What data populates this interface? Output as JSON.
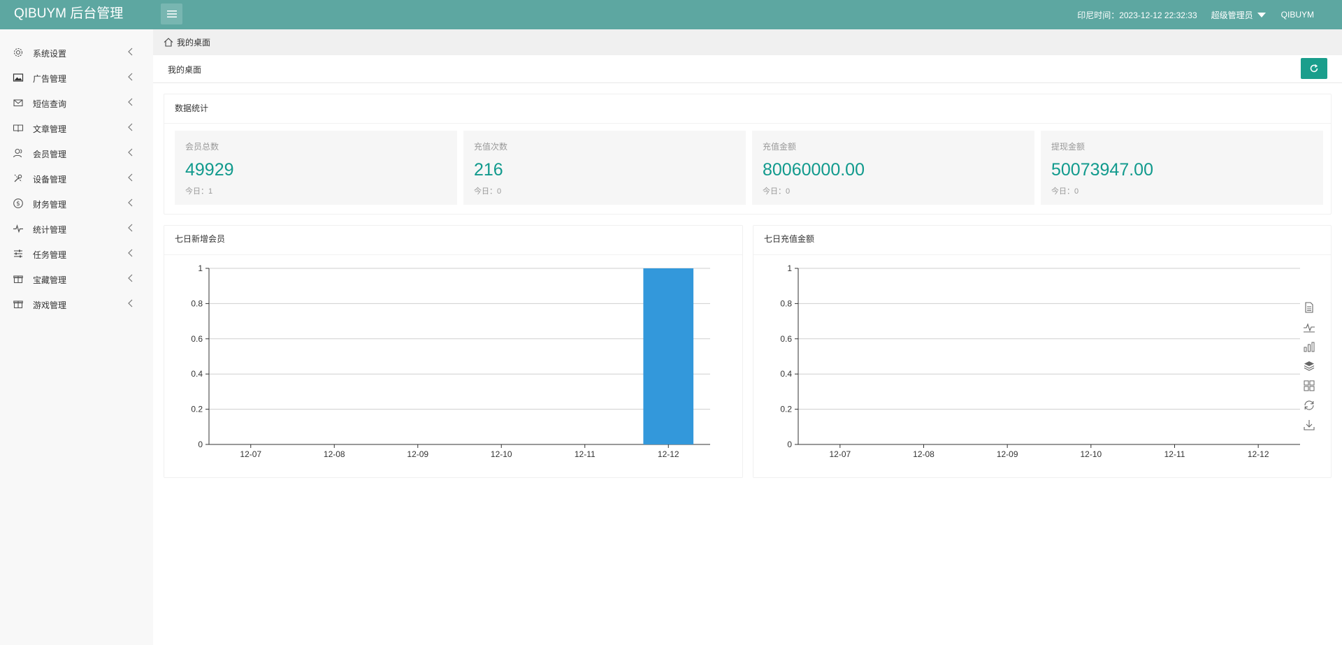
{
  "header": {
    "logo": "QIBUYM 后台管理",
    "login_time": "印尼时间：2023-12-12 22:32:33",
    "role": "超级管理员",
    "username": "QIBUYM"
  },
  "sidebar": {
    "items": [
      {
        "label": "系统设置",
        "icon": "gear-icon"
      },
      {
        "label": "广告管理",
        "icon": "picture-icon"
      },
      {
        "label": "短信查询",
        "icon": "mail-icon"
      },
      {
        "label": "文章管理",
        "icon": "book-icon"
      },
      {
        "label": "会员管理",
        "icon": "users-icon"
      },
      {
        "label": "设备管理",
        "icon": "tools-icon"
      },
      {
        "label": "财务管理",
        "icon": "dollar-icon"
      },
      {
        "label": "统计管理",
        "icon": "pulse-icon"
      },
      {
        "label": "任务管理",
        "icon": "sliders-icon"
      },
      {
        "label": "宝藏管理",
        "icon": "gift-icon"
      },
      {
        "label": "游戏管理",
        "icon": "gift-icon"
      }
    ]
  },
  "breadcrumb": {
    "label": "我的桌面"
  },
  "page": {
    "title": "我的桌面"
  },
  "stats": {
    "title": "数据统计",
    "cards": [
      {
        "label": "会员总数",
        "value": "49929",
        "today": "今日：1"
      },
      {
        "label": "充值次数",
        "value": "216",
        "today": "今日：0"
      },
      {
        "label": "充值金额",
        "value": "80060000.00",
        "today": "今日：0"
      },
      {
        "label": "提现金额",
        "value": "50073947.00",
        "today": "今日：0"
      }
    ]
  },
  "chart_data": [
    {
      "type": "bar",
      "title": "七日新增会员",
      "categories": [
        "12-07",
        "12-08",
        "12-09",
        "12-10",
        "12-11",
        "12-12"
      ],
      "values": [
        0,
        0,
        0,
        0,
        0,
        1
      ],
      "ylim": [
        0,
        1
      ],
      "yticks": [
        "0",
        "0.2",
        "0.4",
        "0.6",
        "0.8",
        "1"
      ],
      "xlabel": "",
      "ylabel": "",
      "grid": true,
      "color": "#3398db"
    },
    {
      "type": "line",
      "title": "七日充值金额",
      "categories": [
        "12-07",
        "12-08",
        "12-09",
        "12-10",
        "12-11",
        "12-12"
      ],
      "values": [
        0,
        0,
        0,
        0,
        0,
        0
      ],
      "ylim": [
        0,
        1
      ],
      "yticks": [
        "0",
        "0.2",
        "0.4",
        "0.6",
        "0.8",
        "1"
      ],
      "xlabel": "",
      "ylabel": "",
      "grid": true,
      "color": "#3398db",
      "toolbox": [
        "data-view-icon",
        "line-chart-icon",
        "bar-chart-icon",
        "stack-icon",
        "tiled-icon",
        "restore-icon",
        "download-icon"
      ]
    }
  ],
  "colors": {
    "header": "#5da7a1",
    "accent": "#119a8d",
    "button": "#1a9e8c",
    "bar": "#3398db"
  }
}
